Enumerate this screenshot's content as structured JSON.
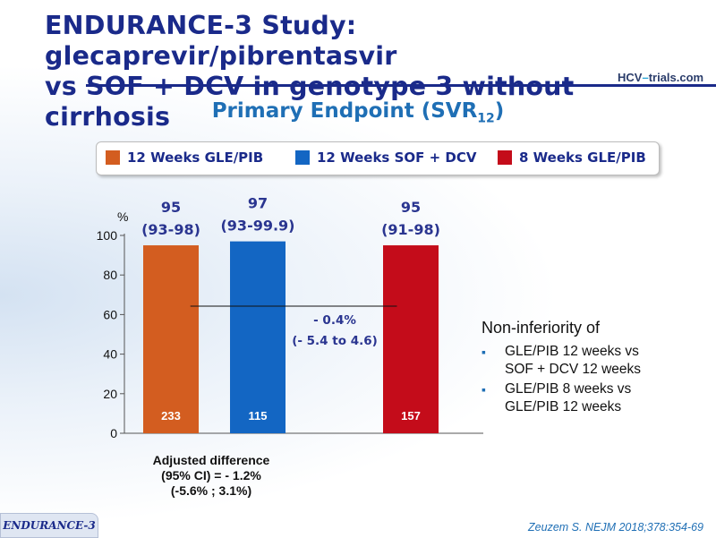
{
  "title_line1": "ENDURANCE-3 Study: glecaprevir/pibrentasvir",
  "title_line2": "vs SOF + DCV in genotype 3 without cirrhosis",
  "logo": {
    "prefix": "HCV",
    "dash": "–",
    "name": "trials",
    "suffix": ".com"
  },
  "subtitle": {
    "text": "Primary Endpoint (SVR",
    "sub": "12",
    "close": ")"
  },
  "legend": [
    {
      "label": "12 Weeks GLE/PIB",
      "color": "#d35d20"
    },
    {
      "label": "12 Weeks SOF + DCV",
      "color": "#1366c3"
    },
    {
      "label": "8 Weeks GLE/PIB",
      "color": "#c40c1a"
    }
  ],
  "chart_data": {
    "type": "bar",
    "ylabel": "%",
    "ylim": [
      0,
      100
    ],
    "yticks": [
      0,
      20,
      40,
      60,
      80,
      100
    ],
    "grid": false,
    "categories": [
      "12 Weeks GLE/PIB",
      "12 Weeks SOF + DCV",
      "8 Weeks GLE/PIB"
    ],
    "values": [
      95,
      97,
      95
    ],
    "value_labels": [
      "95",
      "97",
      "95"
    ],
    "ci_labels": [
      "(93-98)",
      "(93-99.9)",
      "(91-98)"
    ],
    "n": [
      "233",
      "115",
      "157"
    ],
    "colors": [
      "#d35d20",
      "#1366c3",
      "#c40c1a"
    ],
    "annotation": {
      "line1": "- 0.4%",
      "line2": "(- 5.4 to 4.6)"
    }
  },
  "adjusted_difference": [
    "Adjusted difference",
    "(95% CI) = - 1.2%",
    "(-5.6% ; 3.1%)"
  ],
  "noninferiority": {
    "heading": "Non-inferiority of",
    "items": [
      [
        "GLE/PIB 12 weeks vs",
        "SOF + DCV 12 weeks"
      ],
      [
        "GLE/PIB 8 weeks vs",
        "GLE/PIB 12 weeks"
      ]
    ]
  },
  "footer_tag": "ENDURANCE-3",
  "citation": "Zeuzem S. NEJM 2018;378:354-69"
}
